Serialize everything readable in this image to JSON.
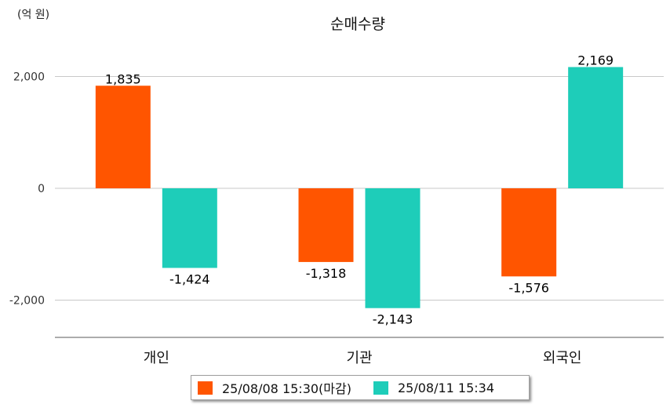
{
  "unit_label": "(억 원)",
  "colors": {
    "series1": "#ff5500",
    "series2": "#1ecdb9",
    "grid": "#c8c8c8",
    "axis": "#7a7a7a"
  },
  "chart_data": {
    "type": "bar",
    "title": "순매수량",
    "categories": [
      "개인",
      "기관",
      "외국인"
    ],
    "series": [
      {
        "name": "25/08/08 15:30(마감)",
        "values": [
          1835,
          -1318,
          -1576
        ],
        "labels": [
          "1,835",
          "-1,318",
          "-1,576"
        ]
      },
      {
        "name": "25/08/11 15:34",
        "values": [
          -1424,
          -2143,
          2169
        ],
        "labels": [
          "-1,424",
          "-2,143",
          "2,169"
        ]
      }
    ],
    "yticks": [
      2000,
      0,
      -2000
    ],
    "ytick_labels": [
      "2,000",
      "0",
      "-2,000"
    ],
    "ylim": [
      -2700,
      2500
    ],
    "grid": true,
    "legend": "bottom"
  }
}
